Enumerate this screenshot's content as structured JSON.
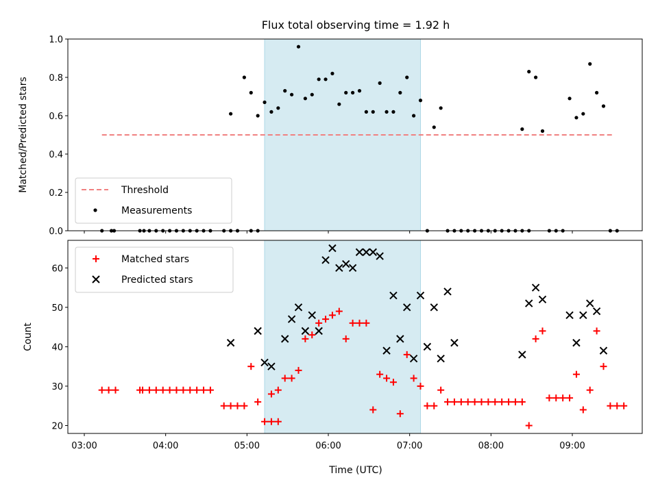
{
  "chart_data": [
    {
      "type": "scatter",
      "title": "Flux total observing time = 1.92 h",
      "ylabel": "Matched/Predicted stars",
      "xlabel": "",
      "ylim": [
        0,
        1.0
      ],
      "yticks": [
        "0.0",
        "0.2",
        "0.4",
        "0.6",
        "0.8",
        "1.0"
      ],
      "highlight_span": {
        "x0": "05:13",
        "x1": "07:08",
        "color": "#add8e6"
      },
      "threshold": {
        "name": "Threshold",
        "value": 0.5,
        "x0": "03:13",
        "x1": "09:30",
        "color": "#f08080"
      },
      "legend": {
        "placement": "lower-left",
        "entries": [
          "Threshold",
          "Measurements"
        ]
      },
      "series": [
        {
          "name": "Measurements",
          "color": "#000000",
          "points": [
            [
              "03:13",
              0
            ],
            [
              "03:20",
              0
            ],
            [
              "03:22",
              0
            ],
            [
              "03:41",
              0
            ],
            [
              "03:44",
              0
            ],
            [
              "03:48",
              0
            ],
            [
              "03:53",
              0
            ],
            [
              "03:58",
              0
            ],
            [
              "04:03",
              0
            ],
            [
              "04:08",
              0
            ],
            [
              "04:13",
              0
            ],
            [
              "04:18",
              0
            ],
            [
              "04:23",
              0
            ],
            [
              "04:28",
              0
            ],
            [
              "04:33",
              0
            ],
            [
              "04:43",
              0
            ],
            [
              "04:48",
              0
            ],
            [
              "04:53",
              0
            ],
            [
              "05:03",
              0
            ],
            [
              "05:08",
              0
            ],
            [
              "04:48",
              0.61
            ],
            [
              "04:58",
              0.8
            ],
            [
              "05:03",
              0.72
            ],
            [
              "05:08",
              0.6
            ],
            [
              "05:13",
              0.67
            ],
            [
              "05:18",
              0.62
            ],
            [
              "05:23",
              0.64
            ],
            [
              "05:28",
              0.73
            ],
            [
              "05:33",
              0.71
            ],
            [
              "05:38",
              0.96
            ],
            [
              "05:43",
              0.69
            ],
            [
              "05:48",
              0.71
            ],
            [
              "05:53",
              0.79
            ],
            [
              "05:58",
              0.79
            ],
            [
              "06:03",
              0.82
            ],
            [
              "06:08",
              0.66
            ],
            [
              "06:13",
              0.72
            ],
            [
              "06:18",
              0.72
            ],
            [
              "06:23",
              0.73
            ],
            [
              "06:28",
              0.62
            ],
            [
              "06:33",
              0.62
            ],
            [
              "06:38",
              0.77
            ],
            [
              "06:43",
              0.62
            ],
            [
              "06:48",
              0.62
            ],
            [
              "06:53",
              0.72
            ],
            [
              "06:58",
              0.8
            ],
            [
              "07:03",
              0.6
            ],
            [
              "07:08",
              0.68
            ],
            [
              "07:13",
              0
            ],
            [
              "07:18",
              0.54
            ],
            [
              "07:23",
              0.64
            ],
            [
              "07:28",
              0
            ],
            [
              "07:33",
              0
            ],
            [
              "07:38",
              0
            ],
            [
              "07:43",
              0
            ],
            [
              "07:48",
              0
            ],
            [
              "07:53",
              0
            ],
            [
              "07:58",
              0
            ],
            [
              "08:03",
              0
            ],
            [
              "08:08",
              0
            ],
            [
              "08:13",
              0
            ],
            [
              "08:18",
              0
            ],
            [
              "08:23",
              0
            ],
            [
              "08:28",
              0
            ],
            [
              "08:23",
              0.53
            ],
            [
              "08:28",
              0.83
            ],
            [
              "08:33",
              0.8
            ],
            [
              "08:38",
              0.52
            ],
            [
              "08:43",
              0
            ],
            [
              "08:48",
              0
            ],
            [
              "08:53",
              0
            ],
            [
              "08:58",
              0.69
            ],
            [
              "09:03",
              0.59
            ],
            [
              "09:08",
              0.61
            ],
            [
              "09:13",
              0.87
            ],
            [
              "09:18",
              0.72
            ],
            [
              "09:23",
              0.65
            ],
            [
              "09:28",
              0
            ],
            [
              "09:33",
              0
            ]
          ]
        }
      ]
    },
    {
      "type": "scatter",
      "title": "",
      "ylabel": "Count",
      "xlabel": "Time (UTC)",
      "ylim": [
        18,
        67
      ],
      "yticks": [
        "20",
        "30",
        "40",
        "50",
        "60"
      ],
      "xticks": [
        "03:00",
        "04:00",
        "05:00",
        "06:00",
        "07:00",
        "08:00",
        "09:00"
      ],
      "highlight_span": {
        "x0": "05:13",
        "x1": "07:08",
        "color": "#add8e6"
      },
      "legend": {
        "placement": "upper-left",
        "entries": [
          "Matched stars",
          "Predicted stars"
        ]
      },
      "series": [
        {
          "name": "Matched stars",
          "color": "#ff0000",
          "marker": "plus",
          "points": [
            [
              "03:13",
              29
            ],
            [
              "03:18",
              29
            ],
            [
              "03:23",
              29
            ],
            [
              "03:41",
              29
            ],
            [
              "03:43",
              29
            ],
            [
              "03:48",
              29
            ],
            [
              "03:53",
              29
            ],
            [
              "03:58",
              29
            ],
            [
              "04:03",
              29
            ],
            [
              "04:08",
              29
            ],
            [
              "04:13",
              29
            ],
            [
              "04:18",
              29
            ],
            [
              "04:23",
              29
            ],
            [
              "04:28",
              29
            ],
            [
              "04:33",
              29
            ],
            [
              "04:43",
              25
            ],
            [
              "04:48",
              25
            ],
            [
              "04:53",
              25
            ],
            [
              "04:58",
              25
            ],
            [
              "05:03",
              35
            ],
            [
              "05:08",
              26
            ],
            [
              "05:13",
              21
            ],
            [
              "05:18",
              21
            ],
            [
              "05:23",
              21
            ],
            [
              "05:18",
              28
            ],
            [
              "05:23",
              29
            ],
            [
              "05:28",
              32
            ],
            [
              "05:33",
              32
            ],
            [
              "05:38",
              34
            ],
            [
              "05:43",
              42
            ],
            [
              "05:48",
              43
            ],
            [
              "05:53",
              46
            ],
            [
              "05:58",
              47
            ],
            [
              "06:03",
              48
            ],
            [
              "06:08",
              49
            ],
            [
              "06:13",
              42
            ],
            [
              "06:18",
              46
            ],
            [
              "06:23",
              46
            ],
            [
              "06:28",
              46
            ],
            [
              "06:33",
              24
            ],
            [
              "06:38",
              33
            ],
            [
              "06:43",
              32
            ],
            [
              "06:48",
              31
            ],
            [
              "06:53",
              23
            ],
            [
              "06:58",
              38
            ],
            [
              "07:03",
              32
            ],
            [
              "07:08",
              30
            ],
            [
              "07:13",
              25
            ],
            [
              "07:18",
              25
            ],
            [
              "07:23",
              29
            ],
            [
              "07:28",
              26
            ],
            [
              "07:33",
              26
            ],
            [
              "07:38",
              26
            ],
            [
              "07:43",
              26
            ],
            [
              "07:48",
              26
            ],
            [
              "07:53",
              26
            ],
            [
              "07:58",
              26
            ],
            [
              "08:03",
              26
            ],
            [
              "08:08",
              26
            ],
            [
              "08:13",
              26
            ],
            [
              "08:18",
              26
            ],
            [
              "08:23",
              26
            ],
            [
              "08:28",
              20
            ],
            [
              "08:33",
              42
            ],
            [
              "08:38",
              44
            ],
            [
              "08:43",
              27
            ],
            [
              "08:48",
              27
            ],
            [
              "08:53",
              27
            ],
            [
              "08:58",
              27
            ],
            [
              "09:03",
              33
            ],
            [
              "09:08",
              24
            ],
            [
              "09:13",
              29
            ],
            [
              "09:18",
              44
            ],
            [
              "09:23",
              35
            ],
            [
              "09:28",
              25
            ],
            [
              "09:33",
              25
            ],
            [
              "09:38",
              25
            ]
          ]
        },
        {
          "name": "Predicted stars",
          "color": "#000000",
          "marker": "x",
          "points": [
            [
              "04:48",
              41
            ],
            [
              "05:08",
              44
            ],
            [
              "05:13",
              36
            ],
            [
              "05:18",
              35
            ],
            [
              "05:28",
              42
            ],
            [
              "05:33",
              47
            ],
            [
              "05:38",
              50
            ],
            [
              "05:43",
              44
            ],
            [
              "05:48",
              48
            ],
            [
              "05:53",
              44
            ],
            [
              "05:58",
              62
            ],
            [
              "06:03",
              65
            ],
            [
              "06:08",
              60
            ],
            [
              "06:13",
              61
            ],
            [
              "06:18",
              60
            ],
            [
              "06:23",
              64
            ],
            [
              "06:28",
              64
            ],
            [
              "06:33",
              64
            ],
            [
              "06:38",
              63
            ],
            [
              "06:43",
              39
            ],
            [
              "06:48",
              53
            ],
            [
              "06:53",
              42
            ],
            [
              "06:58",
              50
            ],
            [
              "07:03",
              37
            ],
            [
              "07:08",
              53
            ],
            [
              "07:13",
              40
            ],
            [
              "07:18",
              50
            ],
            [
              "07:23",
              37
            ],
            [
              "07:28",
              54
            ],
            [
              "07:33",
              41
            ],
            [
              "08:23",
              38
            ],
            [
              "08:28",
              51
            ],
            [
              "08:33",
              55
            ],
            [
              "08:38",
              52
            ],
            [
              "08:58",
              48
            ],
            [
              "09:03",
              41
            ],
            [
              "09:08",
              48
            ],
            [
              "09:13",
              51
            ],
            [
              "09:18",
              49
            ],
            [
              "09:23",
              39
            ]
          ]
        }
      ]
    }
  ]
}
